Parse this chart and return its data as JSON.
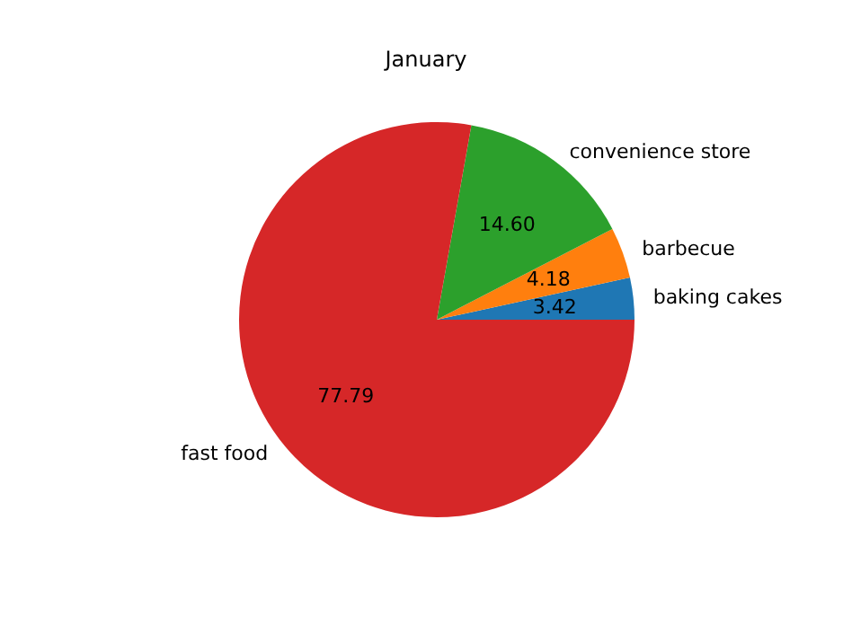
{
  "chart_data": {
    "type": "pie",
    "title": "January",
    "categories": [
      "baking cakes",
      "barbecue",
      "convenience store",
      "fast food"
    ],
    "values": [
      3.42,
      4.18,
      14.6,
      77.79
    ],
    "colors": [
      "#1f77b4",
      "#ff7f0e",
      "#2ca02c",
      "#d62728"
    ],
    "value_labels": [
      "3.42",
      "4.18",
      "14.60",
      "77.79"
    ],
    "legend": false
  }
}
